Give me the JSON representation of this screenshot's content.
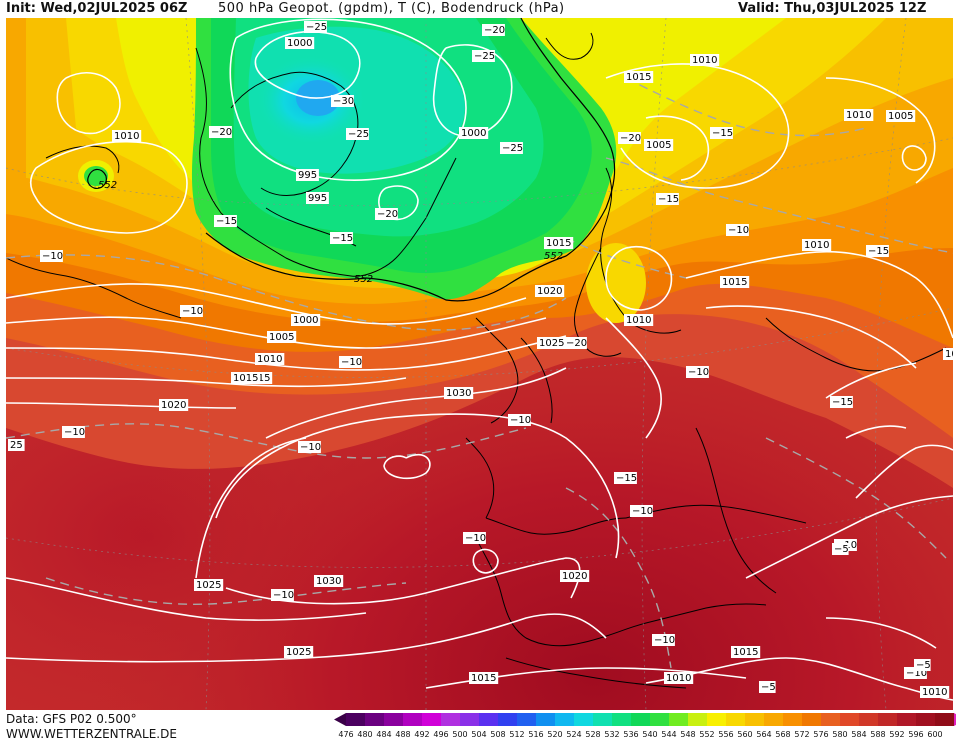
{
  "header": {
    "init": "Init: Wed,02JUL2025 06Z",
    "title": "500 hPa Geopot. (gpdm), T (C), Bodendruck (hPa)",
    "valid": "Valid: Thu,03JUL2025 12Z"
  },
  "footer": {
    "data_source": "Data: GFS P02 0.500°",
    "website": "WWW.WETTERZENTRALE.DE"
  },
  "legend": {
    "values": [
      "476",
      "480",
      "484",
      "488",
      "492",
      "496",
      "500",
      "504",
      "508",
      "512",
      "516",
      "520",
      "524",
      "528",
      "532",
      "536",
      "540",
      "544",
      "548",
      "552",
      "556",
      "560",
      "564",
      "568",
      "572",
      "576",
      "580",
      "584",
      "588",
      "592",
      "596",
      "600"
    ],
    "colors": [
      "#4b0060",
      "#6a0080",
      "#8a009e",
      "#b000c0",
      "#d000d8",
      "#b030e0",
      "#8a30e8",
      "#5a30f0",
      "#3040f0",
      "#2060f0",
      "#1090f0",
      "#10b8f0",
      "#10d8e0",
      "#10e0b0",
      "#10e080",
      "#10d858",
      "#30e040",
      "#70ec20",
      "#c8f010",
      "#f8f000",
      "#f8d800",
      "#f8c000",
      "#f8a800",
      "#f89000",
      "#f07800",
      "#e86020",
      "#e04828",
      "#d03828",
      "#c02828",
      "#b01828",
      "#a01020",
      "#900c18"
    ],
    "under_color": "#3a0048",
    "over_color": "#e020c0"
  },
  "map": {
    "isobar_labels_hpa": [
      {
        "text": "1010"
      },
      {
        "text": "1010"
      },
      {
        "text": "1000"
      },
      {
        "text": "995"
      },
      {
        "text": "995"
      },
      {
        "text": "1000"
      },
      {
        "text": "1015"
      },
      {
        "text": "1010"
      },
      {
        "text": "1010"
      },
      {
        "text": "1005"
      },
      {
        "text": "1005"
      },
      {
        "text": "1010"
      },
      {
        "text": "1015"
      },
      {
        "text": "1015"
      },
      {
        "text": "1010"
      },
      {
        "text": "1020"
      },
      {
        "text": "1000"
      },
      {
        "text": "1005"
      },
      {
        "text": "1010"
      },
      {
        "text": "1015"
      },
      {
        "text": "1010"
      },
      {
        "text": "1025"
      },
      {
        "text": "1030"
      },
      {
        "text": "1020"
      },
      {
        "text": "1015"
      },
      {
        "text": "1030"
      },
      {
        "text": "1025"
      },
      {
        "text": "1020"
      },
      {
        "text": "1025"
      },
      {
        "text": "1015"
      },
      {
        "text": "1010"
      },
      {
        "text": "1015"
      },
      {
        "text": "1010"
      },
      {
        "text": "10"
      }
    ],
    "temperature_labels_c": [
      {
        "text": "−25"
      },
      {
        "text": "−20"
      },
      {
        "text": "−25"
      },
      {
        "text": "−30"
      },
      {
        "text": "−25"
      },
      {
        "text": "−20"
      },
      {
        "text": "−25"
      },
      {
        "text": "−20"
      },
      {
        "text": "−15"
      },
      {
        "text": "−20"
      },
      {
        "text": "−15"
      },
      {
        "text": "−15"
      },
      {
        "text": "−15"
      },
      {
        "text": "−10"
      },
      {
        "text": "−10"
      },
      {
        "text": "−15"
      },
      {
        "text": "−20"
      },
      {
        "text": "−15"
      },
      {
        "text": "−10"
      },
      {
        "text": "−10"
      },
      {
        "text": "−10"
      },
      {
        "text": "−10"
      },
      {
        "text": "−10"
      },
      {
        "text": "−15"
      },
      {
        "text": "−10"
      },
      {
        "text": "−10"
      },
      {
        "text": "−10"
      },
      {
        "text": "−10"
      },
      {
        "text": "−10"
      },
      {
        "text": "−10"
      },
      {
        "text": "−10"
      },
      {
        "text": "−5"
      },
      {
        "text": "−5"
      },
      {
        "text": "−5"
      },
      {
        "text": "25"
      }
    ],
    "geopotential_labels_gpdm": [
      {
        "text": "552"
      },
      {
        "text": "552"
      },
      {
        "text": "552"
      }
    ]
  }
}
